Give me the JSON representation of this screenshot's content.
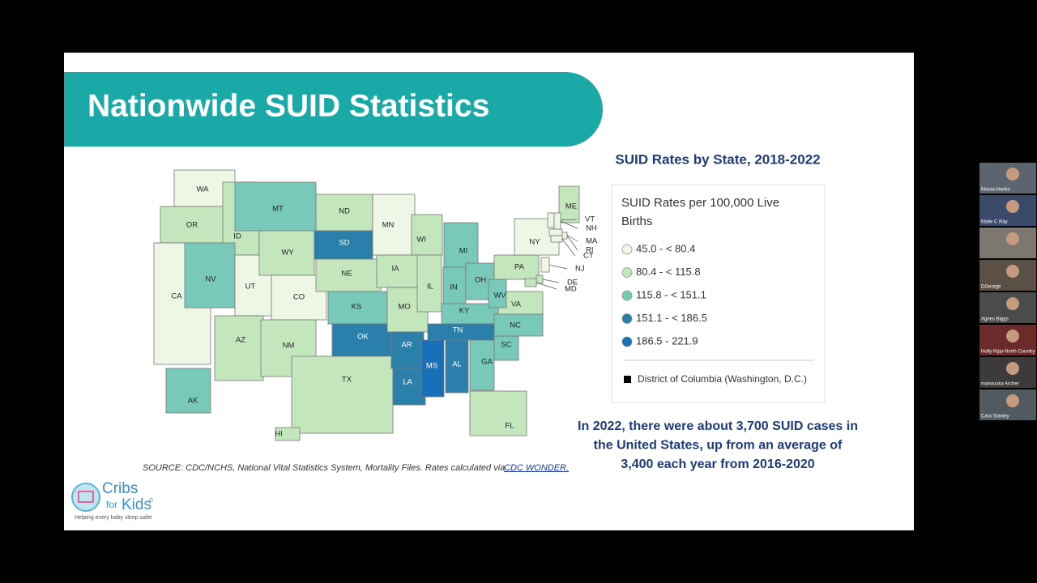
{
  "slide": {
    "title": "Nationwide SUID Statistics",
    "map_title": "SUID Rates by State, 2018-2022",
    "legend": {
      "title_lines": [
        "SUID Rates per 100,000 Live",
        "Births"
      ],
      "bins": [
        {
          "label": "45.0 - < 80.4",
          "color": "#eef7e6"
        },
        {
          "label": "80.4 - < 115.8",
          "color": "#c4e6bd"
        },
        {
          "label": "115.8 - < 151.1",
          "color": "#78c9b9"
        },
        {
          "label": "151.1 - < 186.5",
          "color": "#2b80ab"
        },
        {
          "label": "186.5 - 221.9",
          "color": "#1a70b8"
        }
      ],
      "dc_note": "District of Columbia (Washington, D.C.)"
    },
    "states": [
      {
        "label": "WA",
        "bin": 0
      },
      {
        "label": "OR",
        "bin": 1
      },
      {
        "label": "CA",
        "bin": 0
      },
      {
        "label": "ID",
        "bin": 1
      },
      {
        "label": "NV",
        "bin": 2
      },
      {
        "label": "UT",
        "bin": 0
      },
      {
        "label": "AZ",
        "bin": 1
      },
      {
        "label": "MT",
        "bin": 2
      },
      {
        "label": "WY",
        "bin": 1
      },
      {
        "label": "CO",
        "bin": 0
      },
      {
        "label": "NM",
        "bin": 1
      },
      {
        "label": "ND",
        "bin": 1
      },
      {
        "label": "SD",
        "bin": 3
      },
      {
        "label": "NE",
        "bin": 1
      },
      {
        "label": "KS",
        "bin": 2
      },
      {
        "label": "OK",
        "bin": 3
      },
      {
        "label": "TX",
        "bin": 1
      },
      {
        "label": "MN",
        "bin": 0
      },
      {
        "label": "IA",
        "bin": 1
      },
      {
        "label": "MO",
        "bin": 1
      },
      {
        "label": "AR",
        "bin": 3
      },
      {
        "label": "LA",
        "bin": 3
      },
      {
        "label": "WI",
        "bin": 1
      },
      {
        "label": "IL",
        "bin": 1
      },
      {
        "label": "MI",
        "bin": 2
      },
      {
        "label": "IN",
        "bin": 2
      },
      {
        "label": "OH",
        "bin": 2
      },
      {
        "label": "KY",
        "bin": 2
      },
      {
        "label": "TN",
        "bin": 3
      },
      {
        "label": "MS",
        "bin": 4
      },
      {
        "label": "AL",
        "bin": 3
      },
      {
        "label": "GA",
        "bin": 2
      },
      {
        "label": "FL",
        "bin": 1
      },
      {
        "label": "SC",
        "bin": 2
      },
      {
        "label": "NC",
        "bin": 2
      },
      {
        "label": "VA",
        "bin": 1
      },
      {
        "label": "WV",
        "bin": 2
      },
      {
        "label": "PA",
        "bin": 1
      },
      {
        "label": "NY",
        "bin": 0
      },
      {
        "label": "ME",
        "bin": 1
      },
      {
        "label": "VT",
        "bin": 0
      },
      {
        "label": "NH",
        "bin": 0
      },
      {
        "label": "MA",
        "bin": 0
      },
      {
        "label": "RI",
        "bin": 0
      },
      {
        "label": "CT",
        "bin": 0
      },
      {
        "label": "NJ",
        "bin": 0
      },
      {
        "label": "DE",
        "bin": 1
      },
      {
        "label": "MD",
        "bin": 1
      },
      {
        "label": "AK",
        "bin": 2
      },
      {
        "label": "HI",
        "bin": 1
      }
    ],
    "summary_lines": [
      "In 2022, there were about 3,700 SUID cases in",
      "the United States, up from an average of",
      "3,400 each year from 2016-2020"
    ],
    "source": "SOURCE: CDC/NCHS, National Vital Statistics System, Mortality Files. Rates calculated via",
    "source_link": "CDC WONDER.",
    "logo": {
      "word1": "Cribs",
      "word2": "for",
      "word3": "Kids",
      "mark": "®",
      "tagline": "Helping every baby sleep safer"
    }
  },
  "participants": [
    "Maura Hanks",
    "Malie C Ray",
    null,
    "DGeorge",
    "Agnes Biggs",
    "Holly Kipp-North Country",
    "manouska Archer",
    "Cara Stanley"
  ]
}
